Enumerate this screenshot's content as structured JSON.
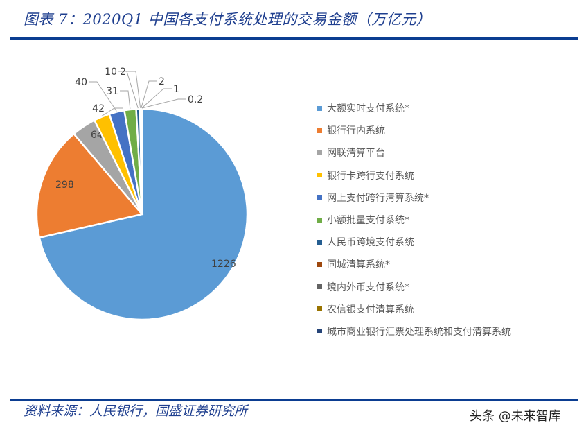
{
  "header": {
    "title": "图表 7：2020Q1 中国各支付系统处理的交易金额（万亿元）"
  },
  "footer": {
    "source": "资料来源：人民银行，国盛证券研究所",
    "watermark": "头条 @未来智库"
  },
  "chart_data": {
    "type": "pie",
    "title": "2020Q1 中国各支付系统处理的交易金额（万亿元）",
    "unit": "万亿元",
    "start_angle_deg": 0,
    "direction": "clockwise",
    "legend_position": "right",
    "categories": [
      "大额实时支付系统*",
      "银行行内系统",
      "网联清算平台",
      "银行卡跨行支付系统",
      "网上支付跨行清算系统*",
      "小额批量支付系统*",
      "人民币跨境支付系统",
      "同城清算系统*",
      "境内外币支付系统*",
      "农信银支付清算系统",
      "城市商业银行汇票处理系统和支付清算系统"
    ],
    "values": [
      1226,
      298,
      64,
      42,
      40,
      31,
      10,
      2,
      2,
      1,
      0.2
    ],
    "data_labels": [
      "1226",
      "298",
      "64",
      "42",
      "40",
      "31",
      "10",
      "2",
      "2",
      "1",
      "0.2"
    ],
    "colors": [
      "#5b9bd5",
      "#ed7d31",
      "#a5a5a5",
      "#ffc000",
      "#4472c4",
      "#70ad47",
      "#255e91",
      "#9e480e",
      "#636363",
      "#997300",
      "#264478"
    ]
  }
}
